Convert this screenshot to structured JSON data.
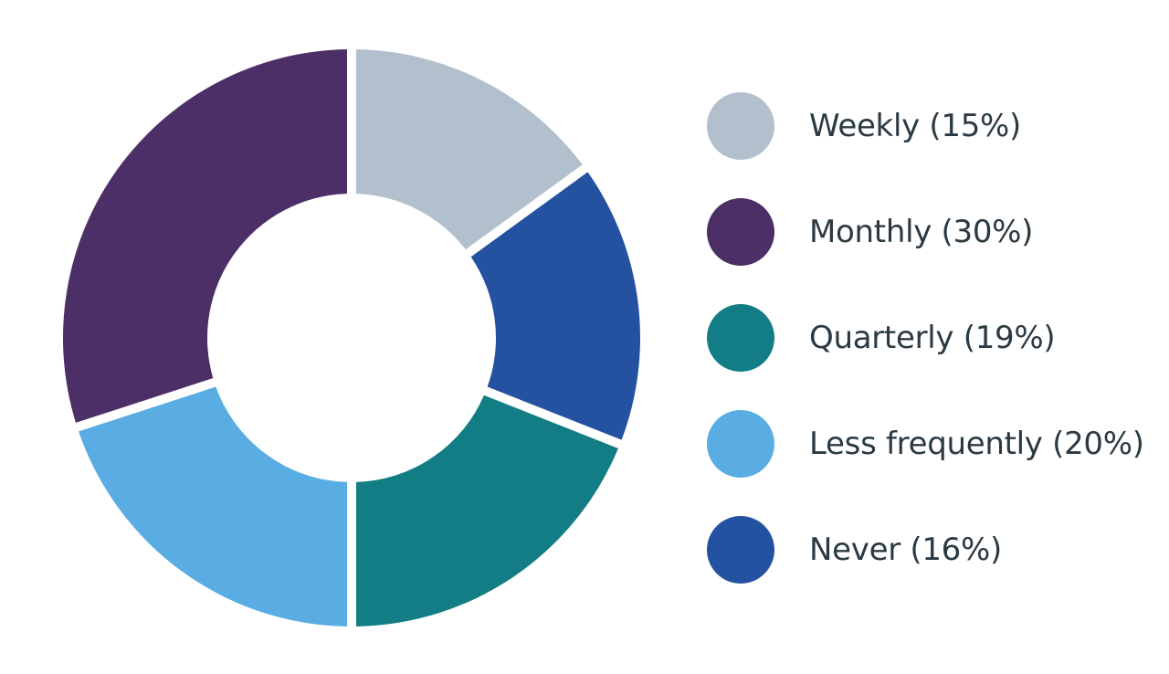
{
  "chart_data": {
    "type": "pie",
    "variant": "donut",
    "title": "",
    "legend_position": "right",
    "slices": [
      {
        "label": "Weekly (15%)",
        "value": 15,
        "color": "#b2bfcd"
      },
      {
        "label": "Never (16%)",
        "value": 16,
        "color": "#2452a0"
      },
      {
        "label": "Quarterly (19%)",
        "value": 19,
        "color": "#137d86"
      },
      {
        "label": "Less frequently (20%)",
        "value": 20,
        "color": "#59ade2"
      },
      {
        "label": "Monthly (30%)",
        "value": 30,
        "color": "#4c2f66"
      }
    ],
    "legend": [
      {
        "label": "Weekly (15%)",
        "color": "#b2bfcd"
      },
      {
        "label": "Monthly (30%)",
        "color": "#4c2f66"
      },
      {
        "label": "Quarterly (19%)",
        "color": "#137d86"
      },
      {
        "label": "Less frequently (20%)",
        "color": "#59ade2"
      },
      {
        "label": "Never (16%)",
        "color": "#2452a0"
      }
    ]
  }
}
